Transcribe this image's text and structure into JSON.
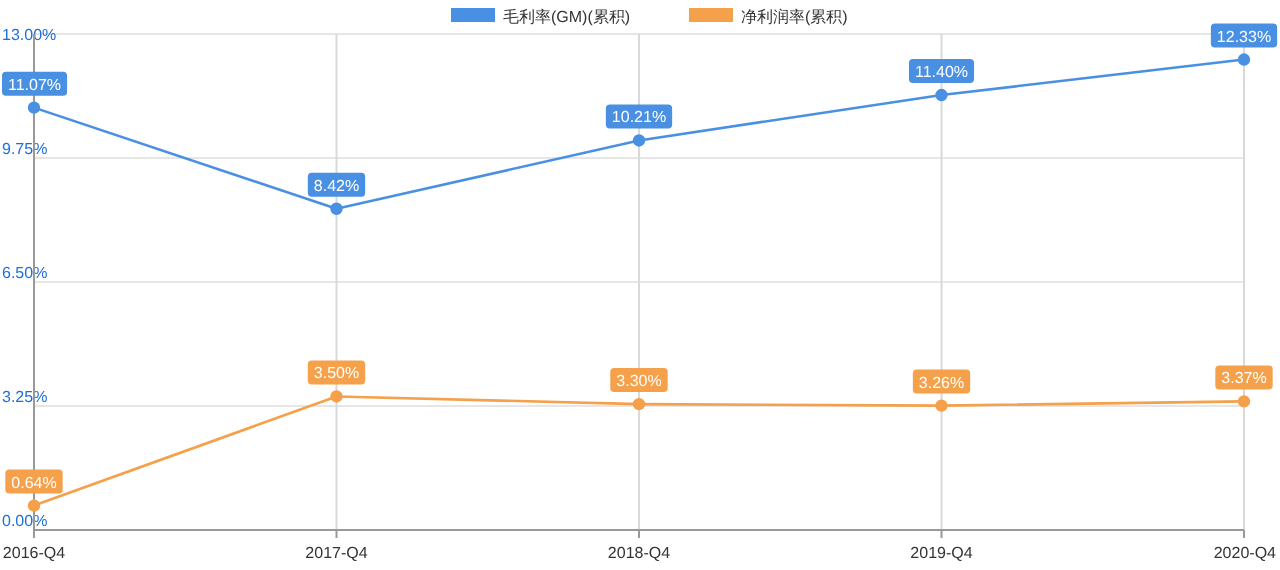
{
  "chart_data": {
    "type": "line",
    "categories": [
      "2016-Q4",
      "2017-Q4",
      "2018-Q4",
      "2019-Q4",
      "2020-Q4"
    ],
    "series": [
      {
        "name": "毛利率(GM)(累积)",
        "color": "#4a90e2",
        "values": [
          11.07,
          8.42,
          10.21,
          11.4,
          12.33
        ],
        "value_labels": [
          "11.07%",
          "8.42%",
          "10.21%",
          "11.40%",
          "12.33%"
        ]
      },
      {
        "name": "净利润率(累积)",
        "color": "#f5a04a",
        "values": [
          0.64,
          3.5,
          3.3,
          3.26,
          3.37
        ],
        "value_labels": [
          "0.64%",
          "3.50%",
          "3.30%",
          "3.26%",
          "3.37%"
        ]
      }
    ],
    "ylim": [
      0,
      13
    ],
    "yticks": [
      {
        "value": 0,
        "label": "0.00%"
      },
      {
        "value": 3.25,
        "label": "3.25%"
      },
      {
        "value": 6.5,
        "label": "6.50%"
      },
      {
        "value": 9.75,
        "label": "9.75%"
      },
      {
        "value": 13,
        "label": "13.00%"
      }
    ],
    "grid": true,
    "legend": "top",
    "marker": "circle",
    "line_style": "solid"
  }
}
